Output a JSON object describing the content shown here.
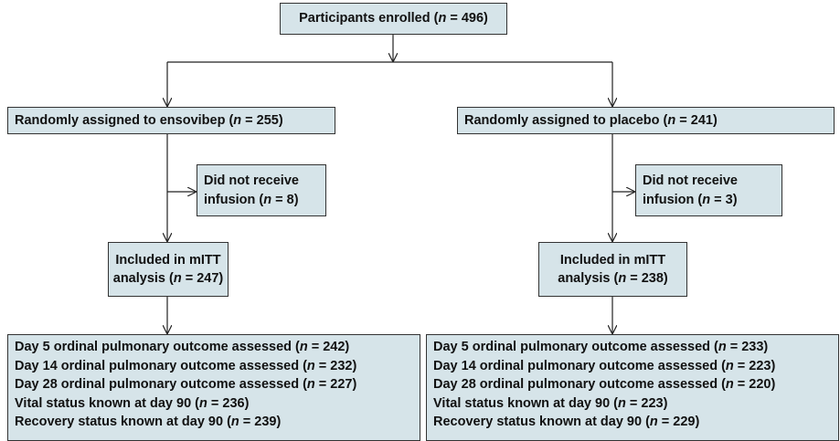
{
  "nodes": [
    {
      "lines": [
        [
          {
            "t": "Participants enrolled ("
          },
          {
            "t": "n",
            "i": true
          },
          {
            "t": " = 496)"
          }
        ]
      ]
    },
    {
      "lines": [
        [
          {
            "t": "Randomly assigned to ensovibep ("
          },
          {
            "t": "n",
            "i": true
          },
          {
            "t": " = 255)"
          }
        ]
      ]
    },
    {
      "lines": [
        [
          {
            "t": "Randomly assigned to placebo ("
          },
          {
            "t": "n",
            "i": true
          },
          {
            "t": " = 241)"
          }
        ]
      ]
    },
    {
      "lines": [
        [
          {
            "t": "Did not receive"
          }
        ],
        [
          {
            "t": "infusion ("
          },
          {
            "t": "n",
            "i": true
          },
          {
            "t": " = 8)"
          }
        ]
      ]
    },
    {
      "lines": [
        [
          {
            "t": "Did not receive"
          }
        ],
        [
          {
            "t": "infusion ("
          },
          {
            "t": "n",
            "i": true
          },
          {
            "t": " = 3)"
          }
        ]
      ]
    },
    {
      "lines": [
        [
          {
            "t": "Included in mITT"
          }
        ],
        [
          {
            "t": "analysis ("
          },
          {
            "t": "n",
            "i": true
          },
          {
            "t": " = 247)"
          }
        ]
      ]
    },
    {
      "lines": [
        [
          {
            "t": "Included in mITT"
          }
        ],
        [
          {
            "t": "analysis ("
          },
          {
            "t": "n",
            "i": true
          },
          {
            "t": " = 238)"
          }
        ]
      ]
    },
    {
      "lines": [
        [
          {
            "t": "Day 5 ordinal pulmonary outcome assessed ("
          },
          {
            "t": "n",
            "i": true
          },
          {
            "t": " = 242)"
          }
        ],
        [
          {
            "t": "Day 14 ordinal pulmonary outcome assessed ("
          },
          {
            "t": "n",
            "i": true
          },
          {
            "t": " = 232)"
          }
        ],
        [
          {
            "t": "Day 28 ordinal pulmonary outcome assessed ("
          },
          {
            "t": "n",
            "i": true
          },
          {
            "t": " = 227)"
          }
        ],
        [
          {
            "t": "Vital status known at day 90 ("
          },
          {
            "t": "n",
            "i": true
          },
          {
            "t": " = 236)"
          }
        ],
        [
          {
            "t": "Recovery status known at day 90 ("
          },
          {
            "t": "n",
            "i": true
          },
          {
            "t": " = 239)"
          }
        ]
      ]
    },
    {
      "lines": [
        [
          {
            "t": "Day 5 ordinal pulmonary outcome assessed ("
          },
          {
            "t": "n",
            "i": true
          },
          {
            "t": " = 233)"
          }
        ],
        [
          {
            "t": "Day 14 ordinal pulmonary outcome assessed ("
          },
          {
            "t": "n",
            "i": true
          },
          {
            "t": " = 223)"
          }
        ],
        [
          {
            "t": "Day 28 ordinal pulmonary outcome assessed ("
          },
          {
            "t": "n",
            "i": true
          },
          {
            "t": " = 220)"
          }
        ],
        [
          {
            "t": "Vital status known at day 90 ("
          },
          {
            "t": "n",
            "i": true
          },
          {
            "t": " = 223)"
          }
        ],
        [
          {
            "t": "Recovery status known at day 90 ("
          },
          {
            "t": "n",
            "i": true
          },
          {
            "t": " = 229)"
          }
        ]
      ]
    }
  ]
}
